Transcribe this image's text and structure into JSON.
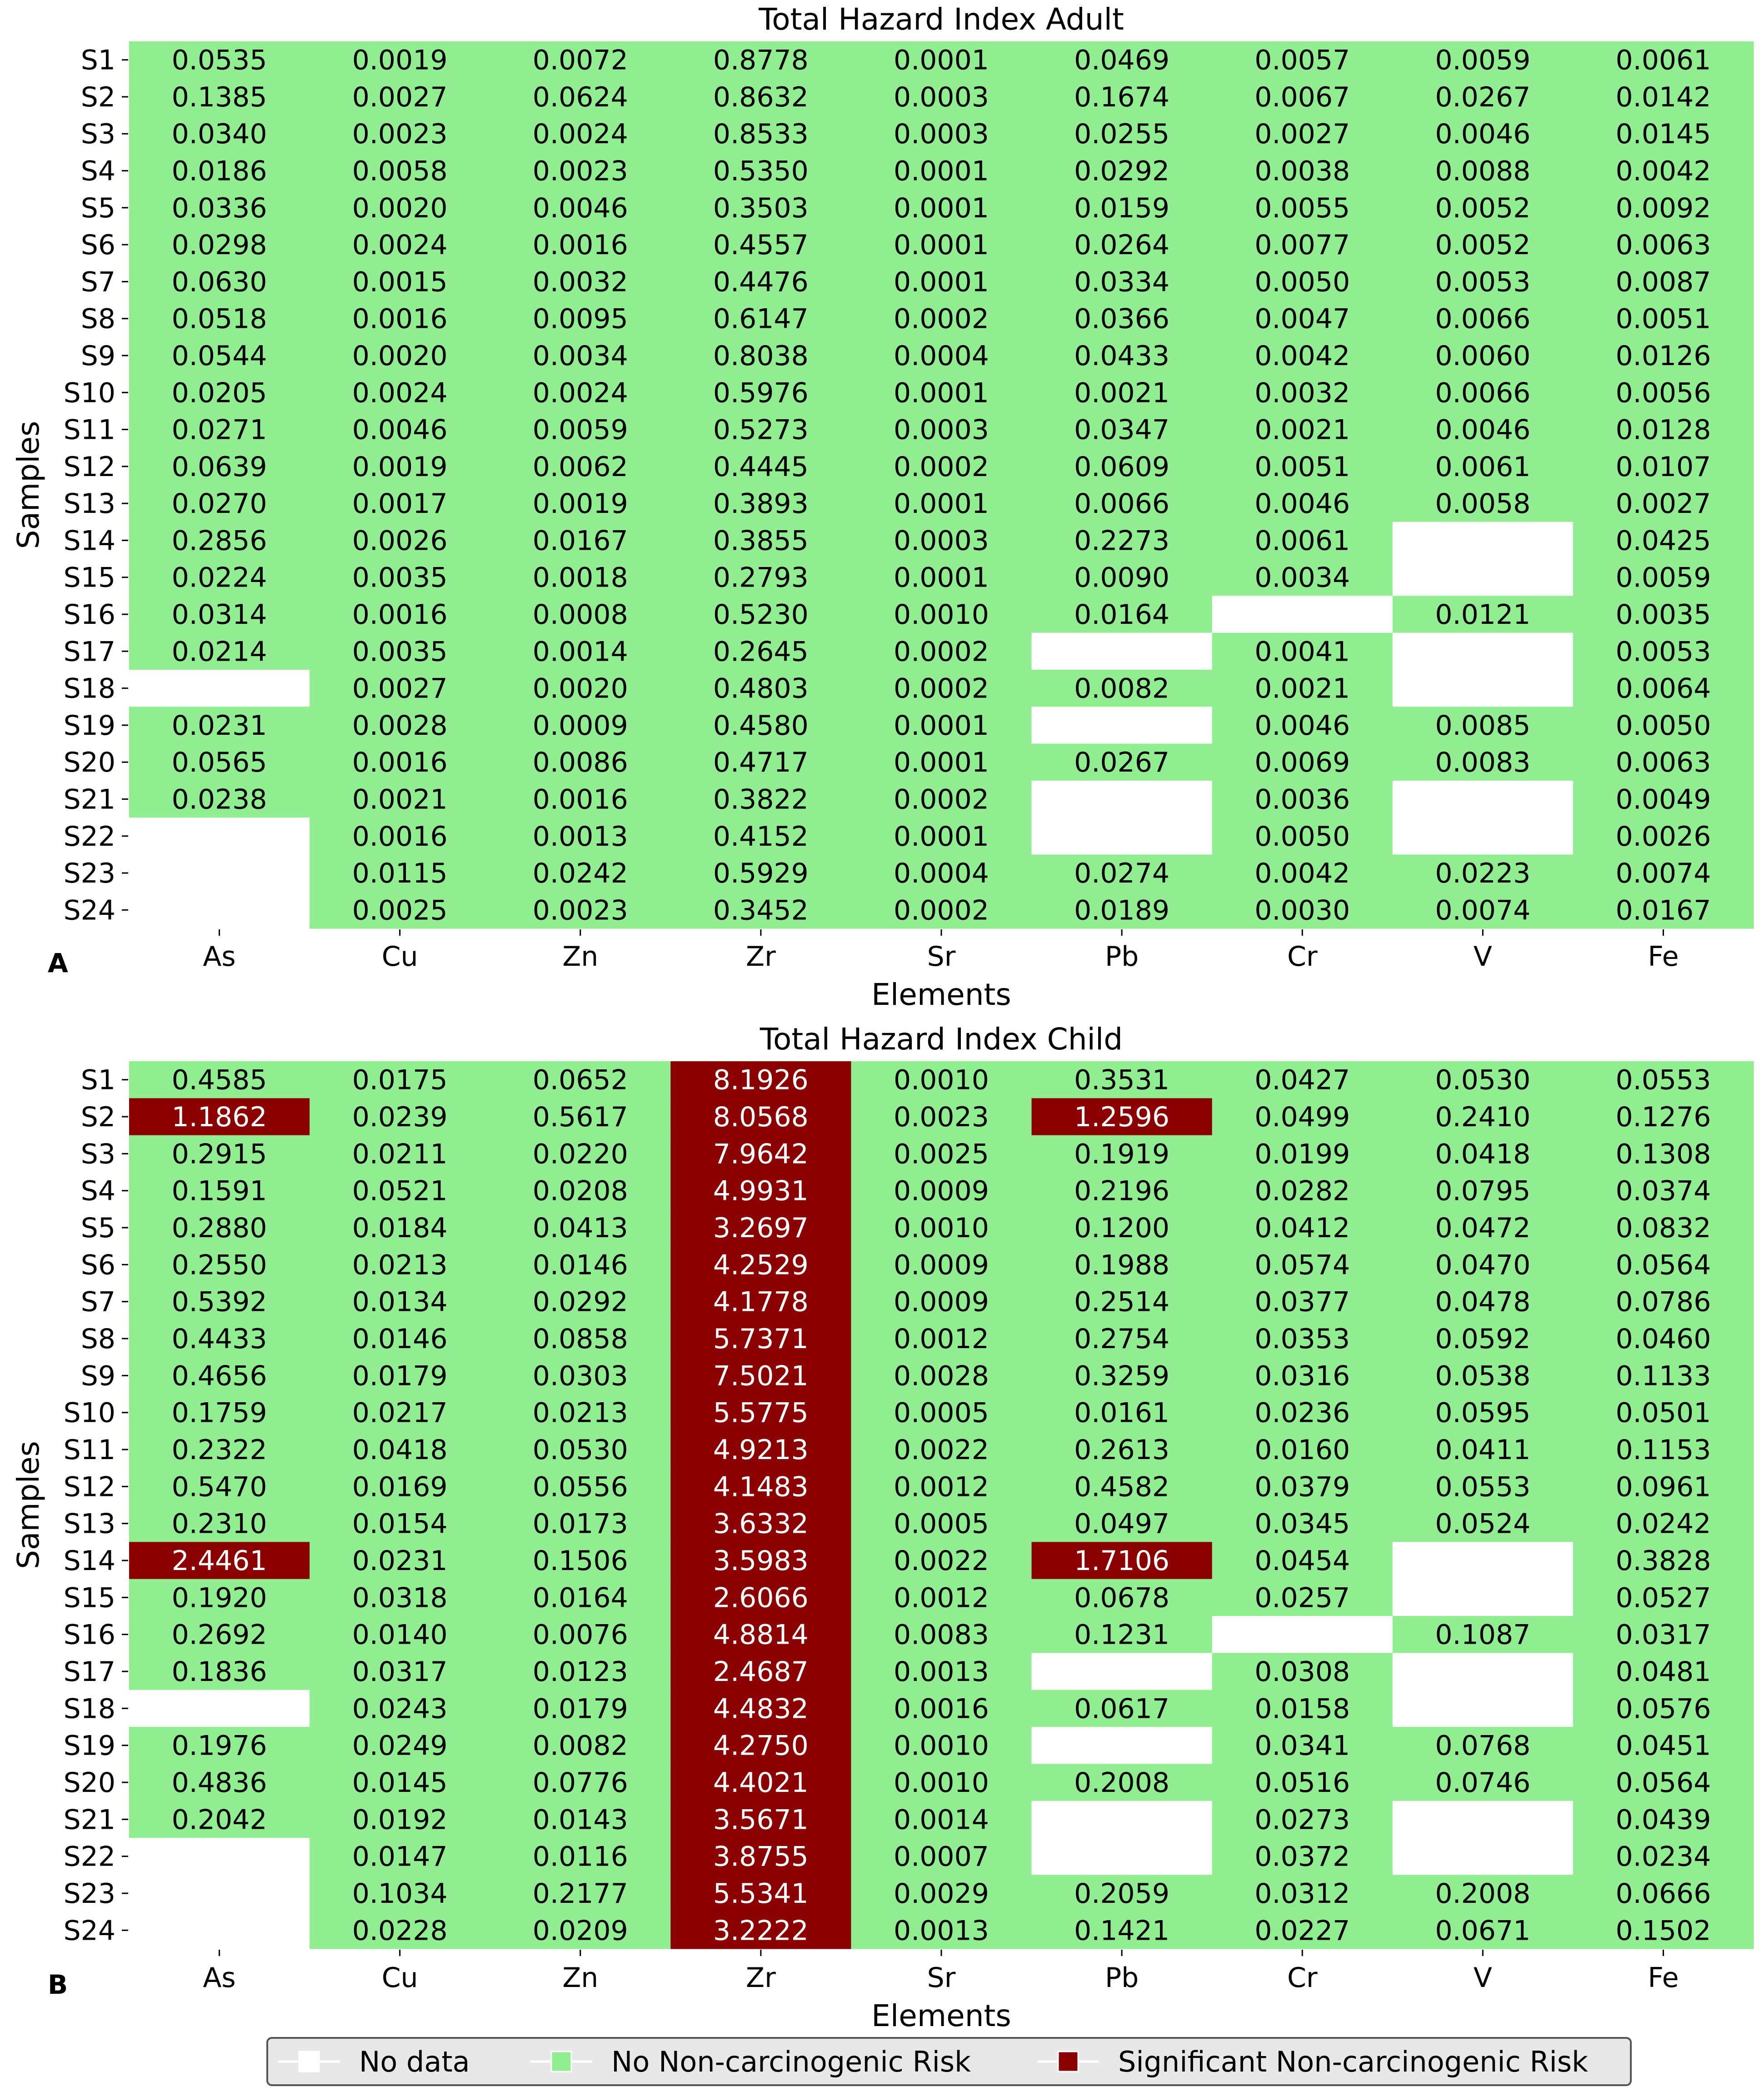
{
  "colors": {
    "no_data": "#ffffff",
    "no_risk": "#90ee90",
    "significant_risk": "#8b0000",
    "text_on_light": "#000000",
    "text_on_dark": "#ffffff"
  },
  "legend": {
    "items": [
      {
        "label": "No data",
        "color": "#ffffff"
      },
      {
        "label": "No Non-carcinogenic Risk",
        "color": "#90ee90"
      },
      {
        "label": "Significant Non-carcinogenic Risk",
        "color": "#8b0000"
      }
    ]
  },
  "chart_data": [
    {
      "type": "heatmap",
      "panel": "A",
      "title": "Total Hazard Index Adult",
      "xlabel": "Elements",
      "ylabel": "Samples",
      "threshold": 1,
      "columns": [
        "As",
        "Cu",
        "Zn",
        "Zr",
        "Sr",
        "Pb",
        "Cr",
        "V",
        "Fe"
      ],
      "rows": [
        "S1",
        "S2",
        "S3",
        "S4",
        "S5",
        "S6",
        "S7",
        "S8",
        "S9",
        "S10",
        "S11",
        "S12",
        "S13",
        "S14",
        "S15",
        "S16",
        "S17",
        "S18",
        "S19",
        "S20",
        "S21",
        "S22",
        "S23",
        "S24"
      ],
      "values": [
        [
          "0.0535",
          "0.0019",
          "0.0072",
          "0.8778",
          "0.0001",
          "0.0469",
          "0.0057",
          "0.0059",
          "0.0061"
        ],
        [
          "0.1385",
          "0.0027",
          "0.0624",
          "0.8632",
          "0.0003",
          "0.1674",
          "0.0067",
          "0.0267",
          "0.0142"
        ],
        [
          "0.0340",
          "0.0023",
          "0.0024",
          "0.8533",
          "0.0003",
          "0.0255",
          "0.0027",
          "0.0046",
          "0.0145"
        ],
        [
          "0.0186",
          "0.0058",
          "0.0023",
          "0.5350",
          "0.0001",
          "0.0292",
          "0.0038",
          "0.0088",
          "0.0042"
        ],
        [
          "0.0336",
          "0.0020",
          "0.0046",
          "0.3503",
          "0.0001",
          "0.0159",
          "0.0055",
          "0.0052",
          "0.0092"
        ],
        [
          "0.0298",
          "0.0024",
          "0.0016",
          "0.4557",
          "0.0001",
          "0.0264",
          "0.0077",
          "0.0052",
          "0.0063"
        ],
        [
          "0.0630",
          "0.0015",
          "0.0032",
          "0.4476",
          "0.0001",
          "0.0334",
          "0.0050",
          "0.0053",
          "0.0087"
        ],
        [
          "0.0518",
          "0.0016",
          "0.0095",
          "0.6147",
          "0.0002",
          "0.0366",
          "0.0047",
          "0.0066",
          "0.0051"
        ],
        [
          "0.0544",
          "0.0020",
          "0.0034",
          "0.8038",
          "0.0004",
          "0.0433",
          "0.0042",
          "0.0060",
          "0.0126"
        ],
        [
          "0.0205",
          "0.0024",
          "0.0024",
          "0.5976",
          "0.0001",
          "0.0021",
          "0.0032",
          "0.0066",
          "0.0056"
        ],
        [
          "0.0271",
          "0.0046",
          "0.0059",
          "0.5273",
          "0.0003",
          "0.0347",
          "0.0021",
          "0.0046",
          "0.0128"
        ],
        [
          "0.0639",
          "0.0019",
          "0.0062",
          "0.4445",
          "0.0002",
          "0.0609",
          "0.0051",
          "0.0061",
          "0.0107"
        ],
        [
          "0.0270",
          "0.0017",
          "0.0019",
          "0.3893",
          "0.0001",
          "0.0066",
          "0.0046",
          "0.0058",
          "0.0027"
        ],
        [
          "0.2856",
          "0.0026",
          "0.0167",
          "0.3855",
          "0.0003",
          "0.2273",
          "0.0061",
          null,
          "0.0425"
        ],
        [
          "0.0224",
          "0.0035",
          "0.0018",
          "0.2793",
          "0.0001",
          "0.0090",
          "0.0034",
          null,
          "0.0059"
        ],
        [
          "0.0314",
          "0.0016",
          "0.0008",
          "0.5230",
          "0.0010",
          "0.0164",
          null,
          "0.0121",
          "0.0035"
        ],
        [
          "0.0214",
          "0.0035",
          "0.0014",
          "0.2645",
          "0.0002",
          null,
          "0.0041",
          null,
          "0.0053"
        ],
        [
          null,
          "0.0027",
          "0.0020",
          "0.4803",
          "0.0002",
          "0.0082",
          "0.0021",
          null,
          "0.0064"
        ],
        [
          "0.0231",
          "0.0028",
          "0.0009",
          "0.4580",
          "0.0001",
          null,
          "0.0046",
          "0.0085",
          "0.0050"
        ],
        [
          "0.0565",
          "0.0016",
          "0.0086",
          "0.4717",
          "0.0001",
          "0.0267",
          "0.0069",
          "0.0083",
          "0.0063"
        ],
        [
          "0.0238",
          "0.0021",
          "0.0016",
          "0.3822",
          "0.0002",
          null,
          "0.0036",
          null,
          "0.0049"
        ],
        [
          null,
          "0.0016",
          "0.0013",
          "0.4152",
          "0.0001",
          null,
          "0.0050",
          null,
          "0.0026"
        ],
        [
          null,
          "0.0115",
          "0.0242",
          "0.5929",
          "0.0004",
          "0.0274",
          "0.0042",
          "0.0223",
          "0.0074"
        ],
        [
          null,
          "0.0025",
          "0.0023",
          "0.3452",
          "0.0002",
          "0.0189",
          "0.0030",
          "0.0074",
          "0.0167"
        ]
      ]
    },
    {
      "type": "heatmap",
      "panel": "B",
      "title": "Total Hazard Index Child",
      "xlabel": "Elements",
      "ylabel": "Samples",
      "threshold": 1,
      "columns": [
        "As",
        "Cu",
        "Zn",
        "Zr",
        "Sr",
        "Pb",
        "Cr",
        "V",
        "Fe"
      ],
      "rows": [
        "S1",
        "S2",
        "S3",
        "S4",
        "S5",
        "S6",
        "S7",
        "S8",
        "S9",
        "S10",
        "S11",
        "S12",
        "S13",
        "S14",
        "S15",
        "S16",
        "S17",
        "S18",
        "S19",
        "S20",
        "S21",
        "S22",
        "S23",
        "S24"
      ],
      "values": [
        [
          "0.4585",
          "0.0175",
          "0.0652",
          "8.1926",
          "0.0010",
          "0.3531",
          "0.0427",
          "0.0530",
          "0.0553"
        ],
        [
          "1.1862",
          "0.0239",
          "0.5617",
          "8.0568",
          "0.0023",
          "1.2596",
          "0.0499",
          "0.2410",
          "0.1276"
        ],
        [
          "0.2915",
          "0.0211",
          "0.0220",
          "7.9642",
          "0.0025",
          "0.1919",
          "0.0199",
          "0.0418",
          "0.1308"
        ],
        [
          "0.1591",
          "0.0521",
          "0.0208",
          "4.9931",
          "0.0009",
          "0.2196",
          "0.0282",
          "0.0795",
          "0.0374"
        ],
        [
          "0.2880",
          "0.0184",
          "0.0413",
          "3.2697",
          "0.0010",
          "0.1200",
          "0.0412",
          "0.0472",
          "0.0832"
        ],
        [
          "0.2550",
          "0.0213",
          "0.0146",
          "4.2529",
          "0.0009",
          "0.1988",
          "0.0574",
          "0.0470",
          "0.0564"
        ],
        [
          "0.5392",
          "0.0134",
          "0.0292",
          "4.1778",
          "0.0009",
          "0.2514",
          "0.0377",
          "0.0478",
          "0.0786"
        ],
        [
          "0.4433",
          "0.0146",
          "0.0858",
          "5.7371",
          "0.0012",
          "0.2754",
          "0.0353",
          "0.0592",
          "0.0460"
        ],
        [
          "0.4656",
          "0.0179",
          "0.0303",
          "7.5021",
          "0.0028",
          "0.3259",
          "0.0316",
          "0.0538",
          "0.1133"
        ],
        [
          "0.1759",
          "0.0217",
          "0.0213",
          "5.5775",
          "0.0005",
          "0.0161",
          "0.0236",
          "0.0595",
          "0.0501"
        ],
        [
          "0.2322",
          "0.0418",
          "0.0530",
          "4.9213",
          "0.0022",
          "0.2613",
          "0.0160",
          "0.0411",
          "0.1153"
        ],
        [
          "0.5470",
          "0.0169",
          "0.0556",
          "4.1483",
          "0.0012",
          "0.4582",
          "0.0379",
          "0.0553",
          "0.0961"
        ],
        [
          "0.2310",
          "0.0154",
          "0.0173",
          "3.6332",
          "0.0005",
          "0.0497",
          "0.0345",
          "0.0524",
          "0.0242"
        ],
        [
          "2.4461",
          "0.0231",
          "0.1506",
          "3.5983",
          "0.0022",
          "1.7106",
          "0.0454",
          null,
          "0.3828"
        ],
        [
          "0.1920",
          "0.0318",
          "0.0164",
          "2.6066",
          "0.0012",
          "0.0678",
          "0.0257",
          null,
          "0.0527"
        ],
        [
          "0.2692",
          "0.0140",
          "0.0076",
          "4.8814",
          "0.0083",
          "0.1231",
          null,
          "0.1087",
          "0.0317"
        ],
        [
          "0.1836",
          "0.0317",
          "0.0123",
          "2.4687",
          "0.0013",
          null,
          "0.0308",
          null,
          "0.0481"
        ],
        [
          null,
          "0.0243",
          "0.0179",
          "4.4832",
          "0.0016",
          "0.0617",
          "0.0158",
          null,
          "0.0576"
        ],
        [
          "0.1976",
          "0.0249",
          "0.0082",
          "4.2750",
          "0.0010",
          null,
          "0.0341",
          "0.0768",
          "0.0451"
        ],
        [
          "0.4836",
          "0.0145",
          "0.0776",
          "4.4021",
          "0.0010",
          "0.2008",
          "0.0516",
          "0.0746",
          "0.0564"
        ],
        [
          "0.2042",
          "0.0192",
          "0.0143",
          "3.5671",
          "0.0014",
          null,
          "0.0273",
          null,
          "0.0439"
        ],
        [
          null,
          "0.0147",
          "0.0116",
          "3.8755",
          "0.0007",
          null,
          "0.0372",
          null,
          "0.0234"
        ],
        [
          null,
          "0.1034",
          "0.2177",
          "5.5341",
          "0.0029",
          "0.2059",
          "0.0312",
          "0.2008",
          "0.0666"
        ],
        [
          null,
          "0.0228",
          "0.0209",
          "3.2222",
          "0.0013",
          "0.1421",
          "0.0227",
          "0.0671",
          "0.1502"
        ]
      ]
    }
  ]
}
